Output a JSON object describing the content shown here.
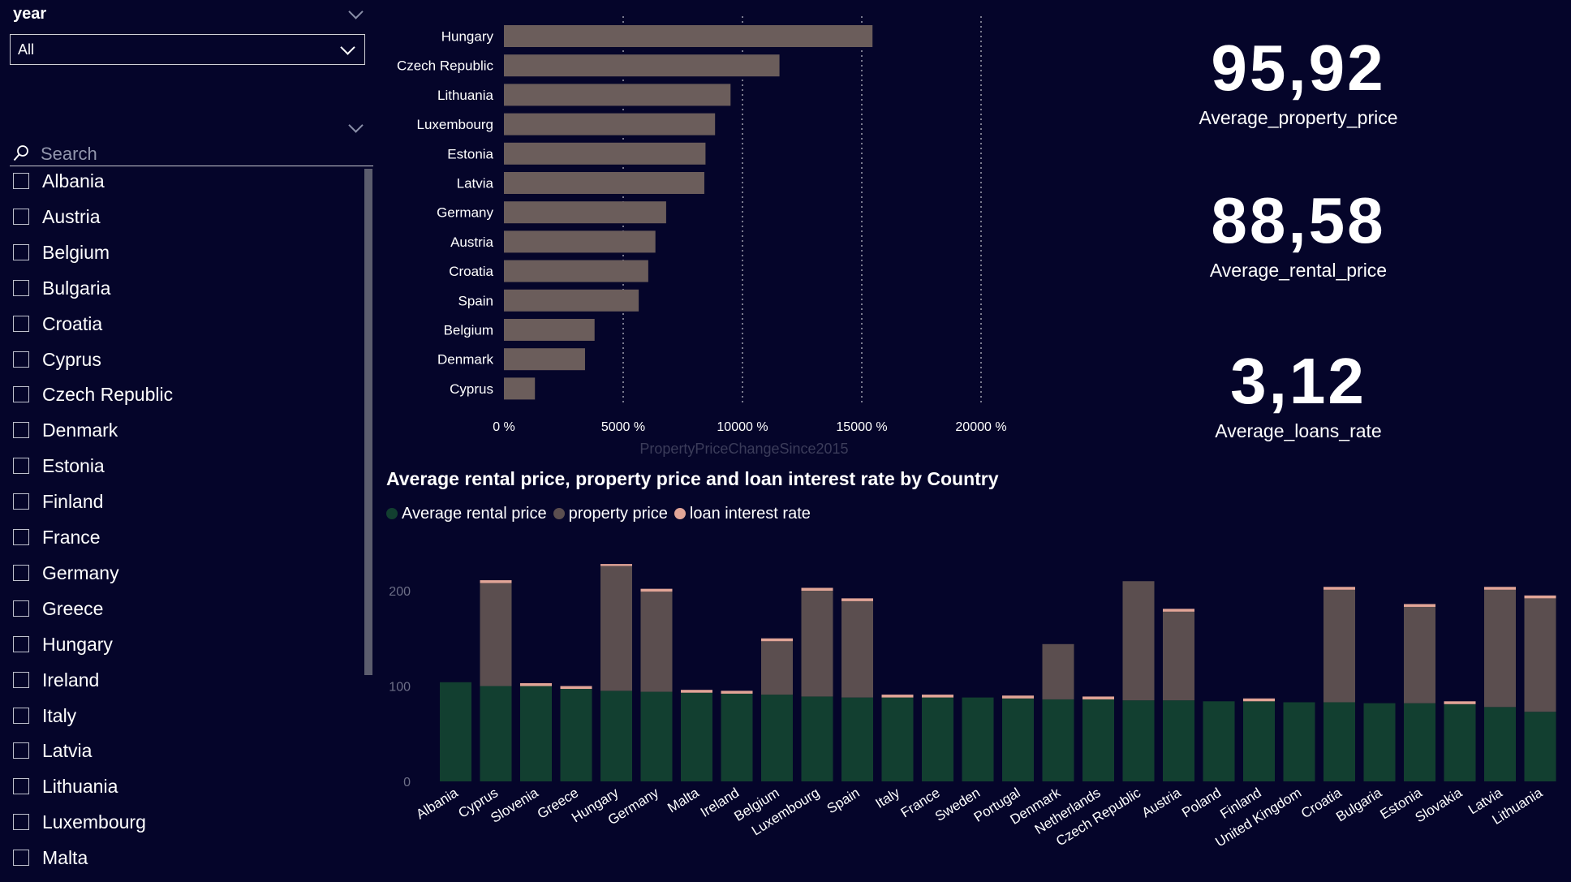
{
  "year_slicer": {
    "title": "year",
    "selected": "All"
  },
  "country_slicer": {
    "search_placeholder": "Search",
    "items": [
      "Albania",
      "Austria",
      "Belgium",
      "Bulgaria",
      "Croatia",
      "Cyprus",
      "Czech Republic",
      "Denmark",
      "Estonia",
      "Finland",
      "France",
      "Germany",
      "Greece",
      "Hungary",
      "Ireland",
      "Italy",
      "Latvia",
      "Lithuania",
      "Luxembourg",
      "Malta"
    ]
  },
  "kpis": [
    {
      "value": "95,92",
      "label": "Average_property_price"
    },
    {
      "value": "88,58",
      "label": "Average_rental_price"
    },
    {
      "value": "3,12",
      "label": "Average_loans_rate"
    }
  ],
  "colors": {
    "background": "#05052a",
    "bar": "#6b5d5b",
    "rental": "#123f30",
    "property": "#5b4e4f",
    "loan": "#e2a597",
    "axis_title": "#3b3c5a",
    "grid": "#c7c7d2"
  },
  "chart_data": [
    {
      "type": "bar",
      "orientation": "horizontal",
      "categories": [
        "Hungary",
        "Czech Republic",
        "Lithuania",
        "Luxembourg",
        "Estonia",
        "Latvia",
        "Germany",
        "Austria",
        "Croatia",
        "Spain",
        "Belgium",
        "Denmark",
        "Cyprus"
      ],
      "values": [
        15450,
        11550,
        9500,
        8850,
        8450,
        8400,
        6800,
        6350,
        6050,
        5650,
        3800,
        3400,
        1300
      ],
      "xlim": [
        0,
        20000
      ],
      "xticks": [
        0,
        5000,
        10000,
        15000,
        20000
      ],
      "xtick_labels": [
        "0 %",
        "5000 %",
        "10000 %",
        "15000 %",
        "20000 %"
      ],
      "xlabel": "PropertyPriceChangeSince2015",
      "grid": "vertical dotted"
    },
    {
      "type": "bar",
      "stacked": true,
      "title": "Average rental price, property price and loan interest rate by Country",
      "categories": [
        "Albania",
        "Cyprus",
        "Slovenia",
        "Greece",
        "Hungary",
        "Germany",
        "Malta",
        "Ireland",
        "Belgium",
        "Luxembourg",
        "Spain",
        "Italy",
        "France",
        "Sweden",
        "Portugal",
        "Denmark",
        "Netherlands",
        "Czech Republic",
        "Austria",
        "Poland",
        "Finland",
        "United Kingdom",
        "Croatia",
        "Bulgaria",
        "Estonia",
        "Slovakia",
        "Latvia",
        "Lithuania"
      ],
      "series": [
        {
          "name": "Average rental price",
          "values": [
            104,
            100,
            100,
            97,
            95,
            94,
            93,
            92,
            91,
            89,
            88,
            88,
            88,
            88,
            87,
            86,
            86,
            85,
            85,
            84,
            84,
            83,
            83,
            82,
            82,
            81,
            78,
            73
          ]
        },
        {
          "name": "property price",
          "values": [
            0,
            108,
            0,
            0,
            131,
            105,
            0,
            0,
            56,
            111,
            101,
            0,
            0,
            0,
            0,
            58,
            0,
            125,
            93,
            0,
            0,
            0,
            118,
            0,
            101,
            0,
            123,
            119
          ]
        },
        {
          "name": "loan interest rate",
          "values": [
            0,
            3,
            3,
            3,
            2,
            3,
            3,
            3,
            3,
            3,
            3,
            3,
            3,
            0,
            3,
            0,
            3,
            0,
            3,
            0,
            3,
            0,
            3,
            0,
            3,
            3,
            3,
            3
          ]
        }
      ],
      "ylim": [
        0,
        240
      ],
      "yticks": [
        0,
        100,
        200
      ],
      "legend": "top-left"
    }
  ]
}
